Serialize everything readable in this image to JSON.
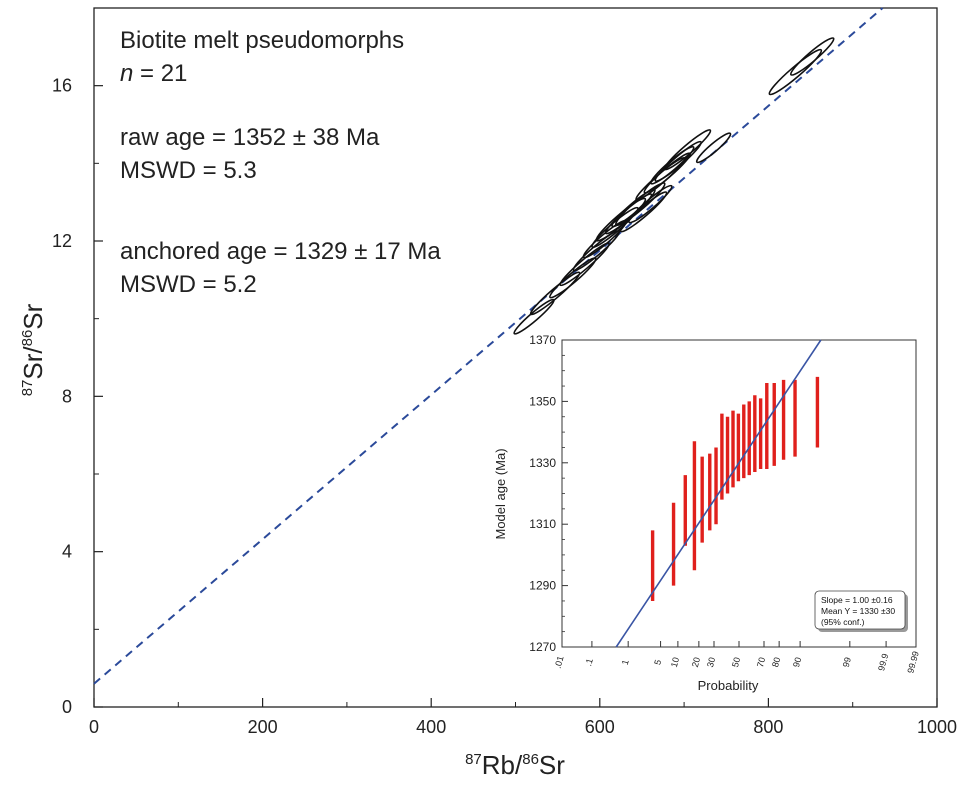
{
  "main_chart": {
    "annotations": {
      "sample": "Biotite melt pseudomorphs",
      "n_symbol": "n",
      "n_value": " = 21",
      "raw_age": "raw age = 1352 ± 38 Ma",
      "raw_mswd": "MSWD = 5.3",
      "anchored_age": "anchored age = 1329 ± 17 Ma",
      "anchored_mswd": "MSWD = 5.2"
    },
    "xlabel": {
      "sup1": "87",
      "base1": "Rb/",
      "sup2": "86",
      "base2": "Sr"
    },
    "ylabel": {
      "sup1": "87",
      "base1": "Sr/",
      "sup2": "86",
      "base2": "Sr"
    }
  },
  "chart_data": [
    {
      "type": "scatter",
      "subtype": "isochron-error-ellipses",
      "xlim": [
        0,
        1000
      ],
      "ylim": [
        0,
        18
      ],
      "xticks": [
        0,
        200,
        400,
        600,
        800,
        1000
      ],
      "yticks": [
        0,
        4,
        8,
        12,
        16
      ],
      "xminor": [
        100,
        300,
        500,
        700,
        900
      ],
      "yminor": [
        2,
        6,
        10,
        14
      ],
      "reference_line": {
        "style": "dashed",
        "color": "#2b4a9a",
        "intercept": 0.6,
        "slope": 0.0186
      },
      "ellipses": [
        {
          "x": 522,
          "y": 10.05,
          "rx": 26,
          "ry": 4
        },
        {
          "x": 547,
          "y": 10.65,
          "rx": 32,
          "ry": 4.5
        },
        {
          "x": 568,
          "y": 11.05,
          "rx": 30,
          "ry": 4.5
        },
        {
          "x": 582,
          "y": 11.4,
          "rx": 32,
          "ry": 4.5
        },
        {
          "x": 596,
          "y": 11.75,
          "rx": 30,
          "ry": 4.5
        },
        {
          "x": 606,
          "y": 12.05,
          "rx": 28,
          "ry": 4.5
        },
        {
          "x": 618,
          "y": 12.35,
          "rx": 30,
          "ry": 4.5
        },
        {
          "x": 625,
          "y": 12.55,
          "rx": 32,
          "ry": 5
        },
        {
          "x": 634,
          "y": 12.7,
          "rx": 30,
          "ry": 4.5
        },
        {
          "x": 640,
          "y": 12.85,
          "rx": 28,
          "ry": 4.5
        },
        {
          "x": 648,
          "y": 12.95,
          "rx": 32,
          "ry": 5
        },
        {
          "x": 652,
          "y": 12.75,
          "rx": 30,
          "ry": 4.5
        },
        {
          "x": 660,
          "y": 12.95,
          "rx": 28,
          "ry": 4.5
        },
        {
          "x": 672,
          "y": 13.6,
          "rx": 32,
          "ry": 4.5
        },
        {
          "x": 680,
          "y": 13.75,
          "rx": 30,
          "ry": 4.5
        },
        {
          "x": 686,
          "y": 13.95,
          "rx": 28,
          "ry": 4.5
        },
        {
          "x": 693,
          "y": 14.05,
          "rx": 30,
          "ry": 4.5
        },
        {
          "x": 704,
          "y": 14.35,
          "rx": 30,
          "ry": 4.5
        },
        {
          "x": 735,
          "y": 14.4,
          "rx": 22,
          "ry": 4
        },
        {
          "x": 832,
          "y": 16.35,
          "rx": 34,
          "ry": 5
        },
        {
          "x": 852,
          "y": 16.75,
          "rx": 28,
          "ry": 4.5
        }
      ]
    },
    {
      "type": "scatter",
      "subtype": "probability-plot",
      "ylabel": "Model age (Ma)",
      "xlabel": "Probability",
      "ylim": [
        1270,
        1370
      ],
      "yticks": [
        1270,
        1290,
        1310,
        1330,
        1350,
        1370
      ],
      "prob_ticks": [
        ".01",
        ".1",
        "1",
        "5",
        "10",
        "20",
        "30",
        "50",
        "70",
        "80",
        "90",
        "99",
        "99.9",
        "99.99"
      ],
      "fit_line": {
        "color": "#3a55a5",
        "slope": 1.0,
        "mean": 1330
      },
      "bars_color": "#e0201c",
      "bars": [
        {
          "p": 3.5,
          "low": 1285,
          "high": 1308
        },
        {
          "p": 8.5,
          "low": 1290,
          "high": 1317
        },
        {
          "p": 13.0,
          "low": 1303,
          "high": 1326
        },
        {
          "p": 17.5,
          "low": 1295,
          "high": 1337
        },
        {
          "p": 22.0,
          "low": 1304,
          "high": 1332
        },
        {
          "p": 27.0,
          "low": 1308,
          "high": 1333
        },
        {
          "p": 31.5,
          "low": 1310,
          "high": 1335
        },
        {
          "p": 36.0,
          "low": 1318,
          "high": 1346
        },
        {
          "p": 40.5,
          "low": 1320,
          "high": 1345
        },
        {
          "p": 45.0,
          "low": 1322,
          "high": 1347
        },
        {
          "p": 49.5,
          "low": 1324,
          "high": 1346
        },
        {
          "p": 54.0,
          "low": 1325,
          "high": 1349
        },
        {
          "p": 58.5,
          "low": 1326,
          "high": 1350
        },
        {
          "p": 63.0,
          "low": 1327,
          "high": 1352
        },
        {
          "p": 67.5,
          "low": 1328,
          "high": 1351
        },
        {
          "p": 72.0,
          "low": 1328,
          "high": 1356
        },
        {
          "p": 77.0,
          "low": 1329,
          "high": 1356
        },
        {
          "p": 82.5,
          "low": 1331,
          "high": 1357
        },
        {
          "p": 88.0,
          "low": 1332,
          "high": 1357
        },
        {
          "p": 95.0,
          "low": 1335,
          "high": 1358
        }
      ],
      "legend": {
        "placement": "bottom-right",
        "lines": [
          "Slope = 1.00 ±0.16",
          "Mean Y = 1330 ±30",
          "(95% conf.)"
        ]
      }
    }
  ]
}
